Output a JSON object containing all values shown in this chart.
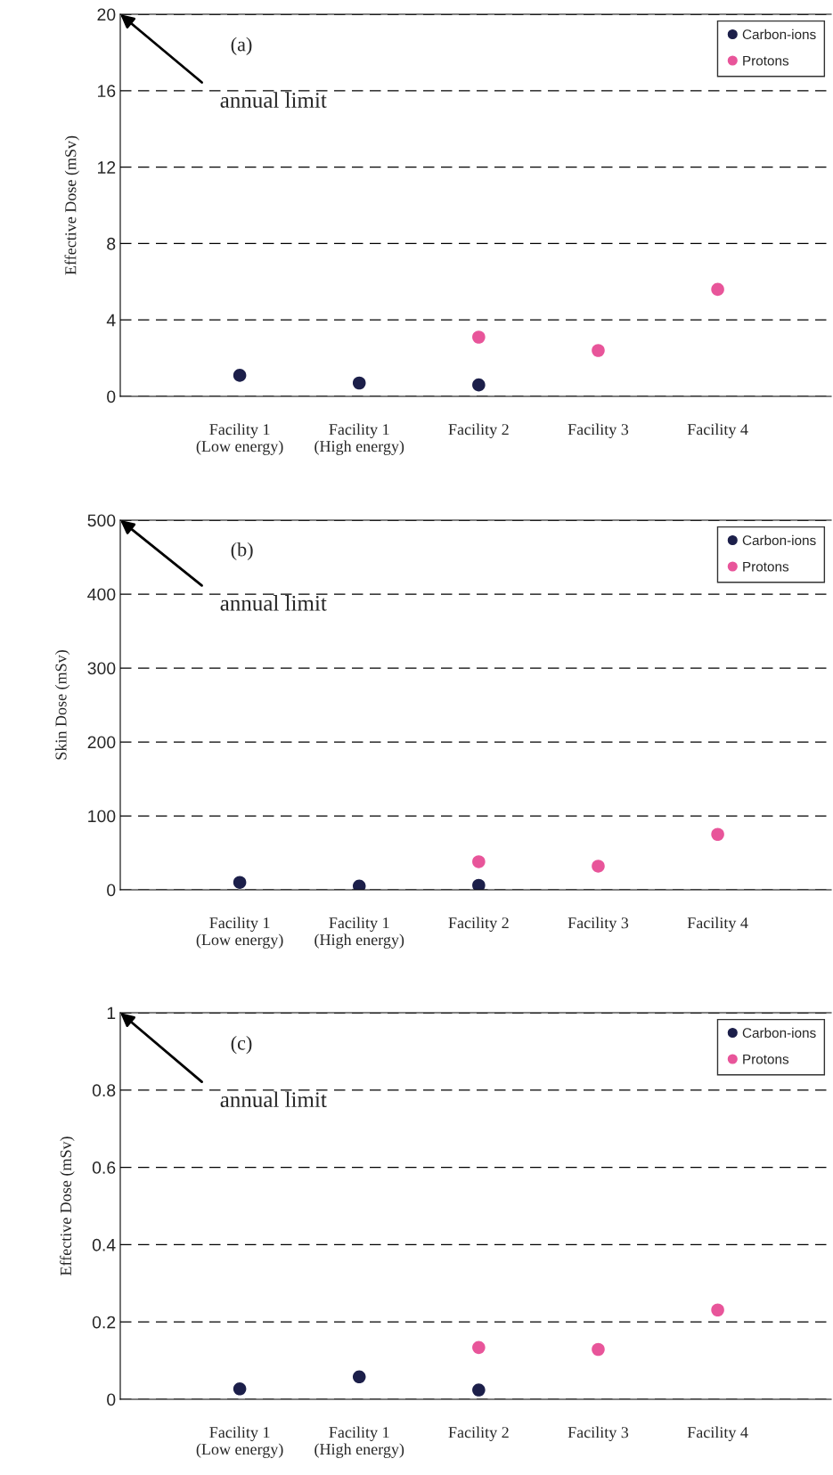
{
  "chart_data": [
    {
      "type": "scatter",
      "title": "(a)",
      "ylabel": "Effective Dose (mSv)",
      "categories": [
        "Facility 1\n(Low energy)",
        "Facility 1\n(High energy)",
        "Facility 2",
        "Facility 3",
        "Facility 4"
      ],
      "series": [
        {
          "name": "Carbon-ions",
          "color": "#1c1f4a",
          "values": [
            1.1,
            0.7,
            0.6,
            null,
            null
          ]
        },
        {
          "name": "Protons",
          "color": "#e8559a",
          "values": [
            null,
            null,
            3.1,
            2.4,
            5.6
          ]
        }
      ],
      "ylim": [
        0,
        20
      ],
      "yticks": [
        0,
        4,
        8,
        12,
        16,
        20
      ],
      "grid": "y",
      "legend": "top right",
      "marker": "circle",
      "annotations": [
        "annual limit"
      ]
    },
    {
      "type": "scatter",
      "title": "(b)",
      "ylabel": "Skin Dose (mSv)",
      "categories": [
        "Facility 1\n(Low energy)",
        "Facility 1\n(High energy)",
        "Facility 2",
        "Facility 3",
        "Facility 4"
      ],
      "series": [
        {
          "name": "Carbon-ions",
          "color": "#1c1f4a",
          "values": [
            10,
            5,
            6,
            null,
            null
          ]
        },
        {
          "name": "Protons",
          "color": "#e8559a",
          "values": [
            null,
            null,
            38,
            32,
            75
          ]
        }
      ],
      "ylim": [
        0,
        500
      ],
      "yticks": [
        0,
        100,
        200,
        300,
        400,
        500
      ],
      "grid": "y",
      "legend": "top right",
      "marker": "circle",
      "annotations": [
        "annual limit"
      ]
    },
    {
      "type": "scatter",
      "title": "(c)",
      "ylabel": "Effective Dose (mSv)",
      "categories": [
        "Facility 1\n(Low energy)",
        "Facility 1\n(High energy)",
        "Facility 2",
        "Facility 3",
        "Facility 4"
      ],
      "series": [
        {
          "name": "Carbon-ions",
          "color": "#1c1f4a",
          "values": [
            0.027,
            0.058,
            0.024,
            null,
            null
          ]
        },
        {
          "name": "Protons",
          "color": "#e8559a",
          "values": [
            null,
            null,
            0.134,
            0.129,
            0.231
          ]
        }
      ],
      "ylim": [
        0,
        1
      ],
      "yticks": [
        0,
        0.2,
        0.4,
        0.6,
        0.8,
        1
      ],
      "grid": "y",
      "legend": "top right",
      "marker": "circle",
      "annotations": [
        "annual limit"
      ]
    }
  ]
}
